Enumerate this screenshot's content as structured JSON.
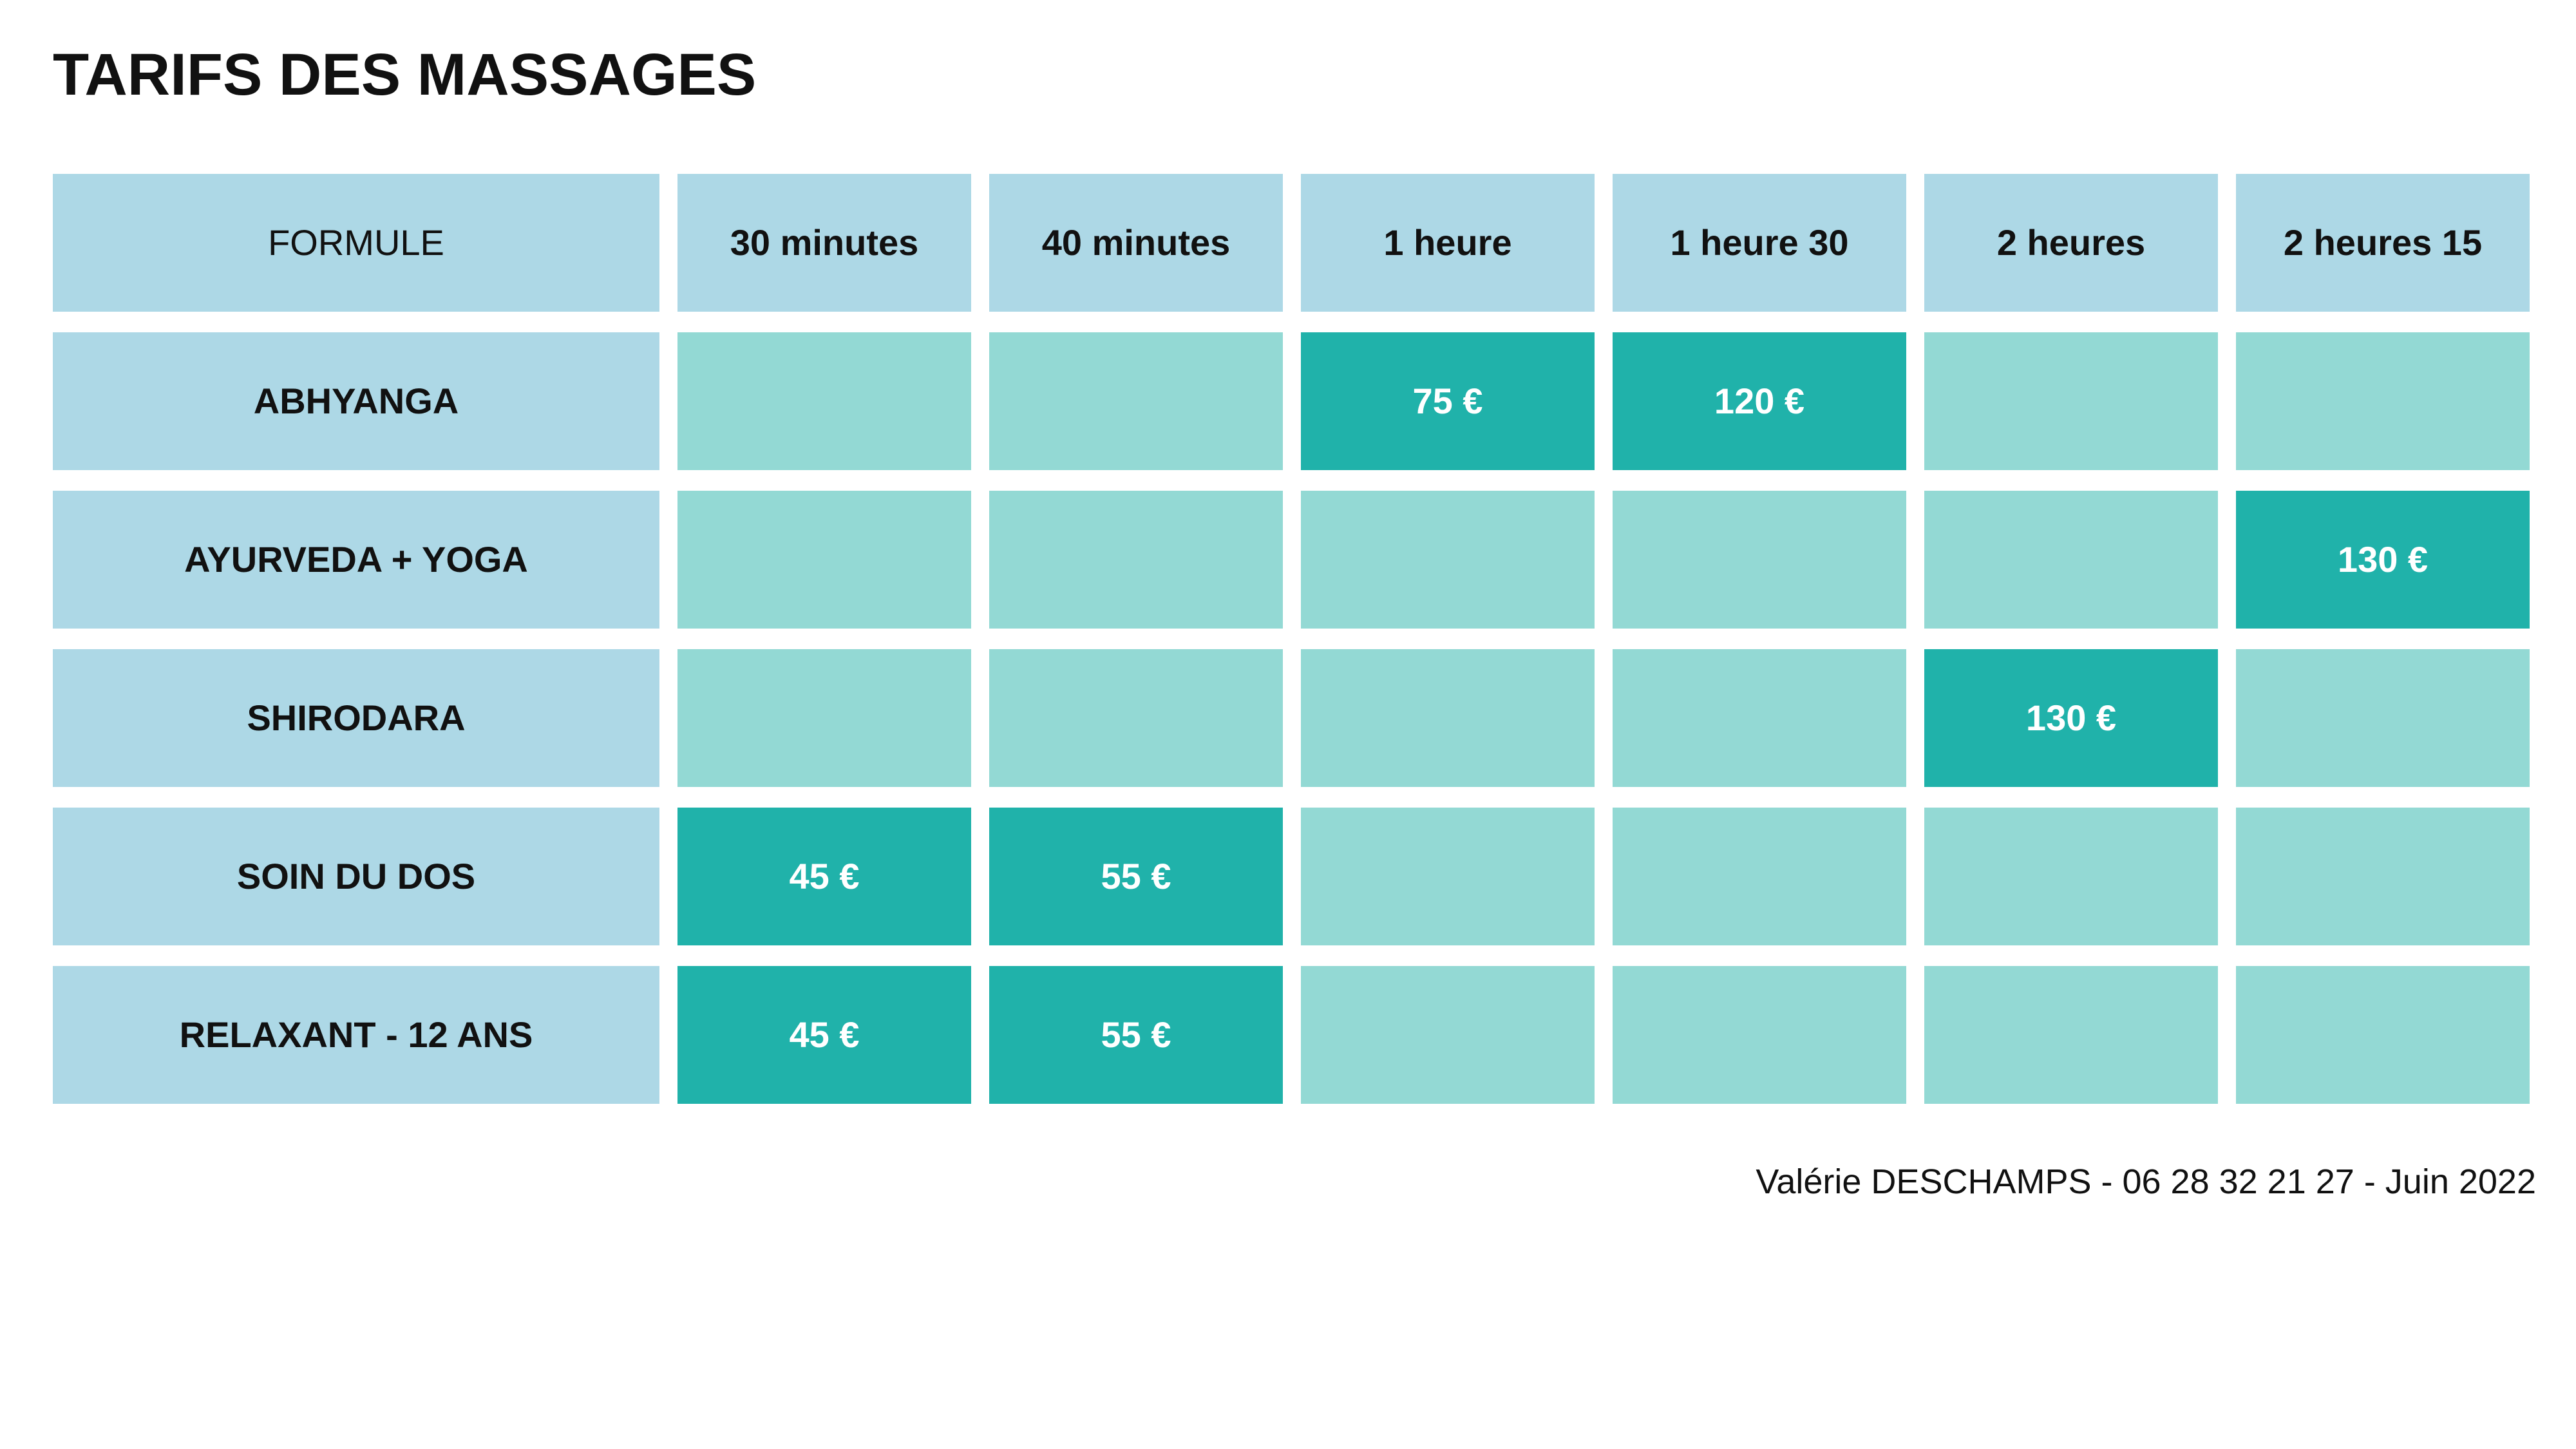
{
  "title": "TARIFS DES MASSAGES",
  "table": {
    "headers": [
      "FORMULE",
      "30 minutes",
      "40 minutes",
      "1 heure",
      "1 heure 30",
      "2 heures",
      "2 heures 15"
    ],
    "rows": [
      {
        "label": "ABHYANGA",
        "cells": [
          "",
          "",
          "75 €",
          "120 €",
          "",
          ""
        ]
      },
      {
        "label": "AYURVEDA + YOGA",
        "cells": [
          "",
          "",
          "",
          "",
          "",
          "130 €"
        ]
      },
      {
        "label": "SHIRODARA",
        "cells": [
          "",
          "",
          "",
          "",
          "130 €",
          ""
        ]
      },
      {
        "label": "SOIN DU DOS",
        "cells": [
          "45 €",
          "55 €",
          "",
          "",
          "",
          ""
        ]
      },
      {
        "label": "RELAXANT - 12 ANS",
        "cells": [
          "45 €",
          "55 €",
          "",
          "",
          "",
          ""
        ]
      }
    ]
  },
  "footer": "Valérie DESCHAMPS - 06 28 32 21 27 - Juin 2022",
  "colors": {
    "header_bg": "#add8e6",
    "empty_cell_bg": "#93d9d4",
    "price_cell_bg": "#20b2aa",
    "price_text": "#ffffff"
  }
}
